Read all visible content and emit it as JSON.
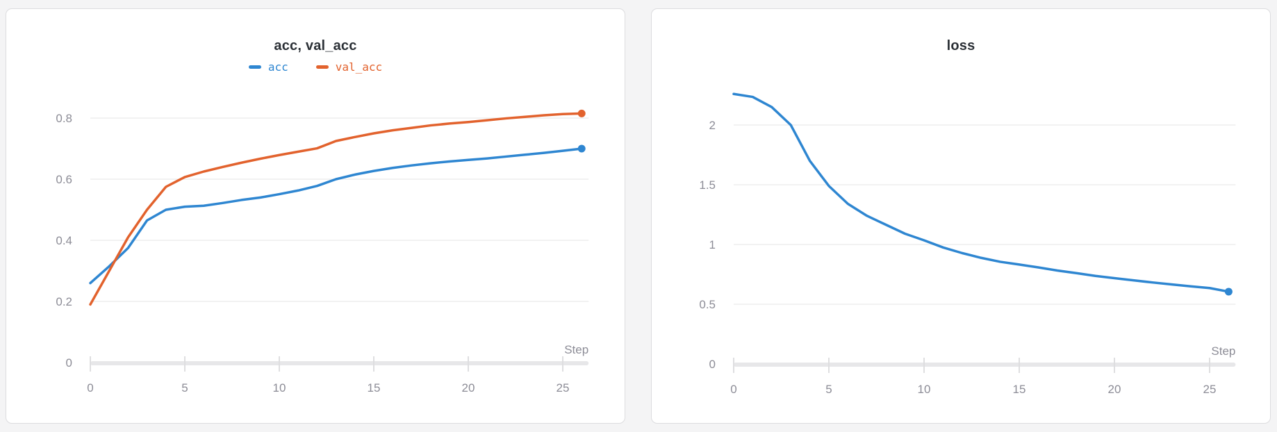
{
  "page": {
    "background": "#f4f4f5"
  },
  "colors": {
    "series_blue": "#2e86d1",
    "series_orange": "#e2622d",
    "title_text": "#2b3036",
    "tick_label": "#8c8c96",
    "gridline": "#ededee",
    "axis_band": "#e7e7e9",
    "tick_mark": "#dedee0",
    "card_border": "#dcdcde",
    "card_background": "#ffffff"
  },
  "chart_data": [
    {
      "id": "acc-chart",
      "type": "line",
      "title": "acc, val_acc",
      "xlabel": "Step",
      "ylabel": "",
      "x_ticks": [
        0,
        5,
        10,
        15,
        20,
        25
      ],
      "y_ticks": [
        0,
        0.2,
        0.4,
        0.6,
        0.8
      ],
      "xlim": [
        0,
        26
      ],
      "ylim": [
        0,
        0.9
      ],
      "grid": true,
      "legend_position": "top-center",
      "x": [
        0,
        1,
        2,
        3,
        4,
        5,
        6,
        7,
        8,
        9,
        10,
        11,
        12,
        13,
        14,
        15,
        16,
        17,
        18,
        19,
        20,
        21,
        22,
        23,
        24,
        25,
        26
      ],
      "series": [
        {
          "name": "acc",
          "color": "#2e86d1",
          "values": [
            0.26,
            0.315,
            0.375,
            0.465,
            0.5,
            0.51,
            0.513,
            0.522,
            0.532,
            0.54,
            0.551,
            0.563,
            0.578,
            0.6,
            0.615,
            0.627,
            0.637,
            0.645,
            0.652,
            0.658,
            0.663,
            0.668,
            0.674,
            0.68,
            0.686,
            0.693,
            0.7
          ]
        },
        {
          "name": "val_acc",
          "color": "#e2622d",
          "values": [
            0.19,
            0.3,
            0.41,
            0.5,
            0.575,
            0.607,
            0.625,
            0.64,
            0.654,
            0.667,
            0.679,
            0.69,
            0.701,
            0.725,
            0.738,
            0.75,
            0.76,
            0.768,
            0.776,
            0.782,
            0.787,
            0.793,
            0.799,
            0.804,
            0.809,
            0.813,
            0.815
          ]
        }
      ]
    },
    {
      "id": "loss-chart",
      "type": "line",
      "title": "loss",
      "xlabel": "Step",
      "ylabel": "",
      "x_ticks": [
        0,
        5,
        10,
        15,
        20,
        25
      ],
      "y_ticks": [
        0,
        0.5,
        1,
        1.5,
        2
      ],
      "xlim": [
        0,
        26
      ],
      "ylim": [
        0,
        2.35
      ],
      "grid": true,
      "legend_position": "none",
      "x": [
        0,
        1,
        2,
        3,
        4,
        5,
        6,
        7,
        8,
        9,
        10,
        11,
        12,
        13,
        14,
        15,
        16,
        17,
        18,
        19,
        20,
        21,
        22,
        23,
        24,
        25,
        26
      ],
      "series": [
        {
          "name": "loss",
          "color": "#2e86d1",
          "values": [
            2.26,
            2.235,
            2.15,
            2.0,
            1.7,
            1.49,
            1.34,
            1.24,
            1.165,
            1.09,
            1.035,
            0.975,
            0.928,
            0.888,
            0.855,
            0.832,
            0.808,
            0.782,
            0.76,
            0.737,
            0.718,
            0.7,
            0.682,
            0.666,
            0.65,
            0.635,
            0.605
          ]
        }
      ]
    }
  ]
}
